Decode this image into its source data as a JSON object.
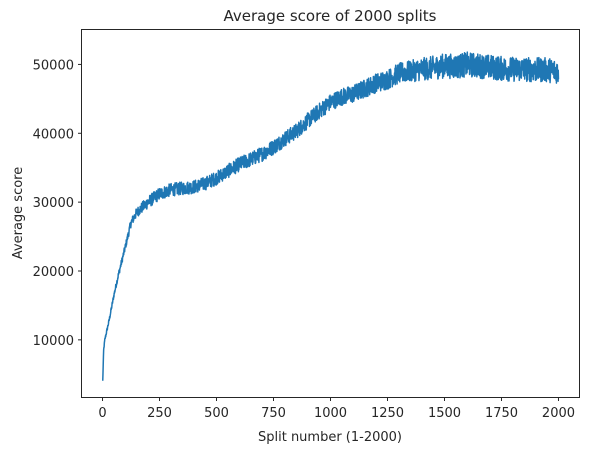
{
  "chart_data": {
    "type": "line",
    "title": "Average score of 2000 splits",
    "xlabel": "Split number (1-2000)",
    "ylabel": "Average score",
    "xlim": [
      -90,
      2090
    ],
    "ylim": [
      1700,
      55000
    ],
    "xticks": [
      0,
      250,
      500,
      750,
      1000,
      1250,
      1500,
      1750,
      2000
    ],
    "xtick_labels": [
      "0",
      "250",
      "500",
      "750",
      "1000",
      "1250",
      "1500",
      "1750",
      "2000"
    ],
    "yticks": [
      10000,
      20000,
      30000,
      40000,
      50000
    ],
    "ytick_labels": [
      "10000",
      "20000",
      "30000",
      "40000",
      "50000"
    ],
    "grid": false,
    "legend": "none",
    "colors": {
      "line": "#1f77b4",
      "axes": "#262626"
    },
    "series": [
      {
        "trend_x": [
          1,
          5,
          10,
          20,
          30,
          50,
          70,
          100,
          125,
          150,
          200,
          250,
          300,
          350,
          400,
          450,
          500,
          550,
          600,
          650,
          700,
          750,
          800,
          850,
          900,
          950,
          1000,
          1050,
          1100,
          1150,
          1200,
          1250,
          1300,
          1350,
          1400,
          1450,
          1500,
          1550,
          1600,
          1650,
          1700,
          1750,
          1800,
          1850,
          1900,
          1950,
          2000
        ],
        "trend_y": [
          4000,
          8500,
          10000,
          11500,
          13000,
          16500,
          19500,
          23500,
          27000,
          28500,
          30000,
          31200,
          31800,
          32000,
          32200,
          32700,
          33500,
          34500,
          35500,
          36200,
          37000,
          38000,
          39200,
          40300,
          41800,
          43200,
          44500,
          45300,
          45700,
          46500,
          47300,
          47800,
          48700,
          49000,
          49300,
          49500,
          49800,
          49700,
          50000,
          49800,
          49600,
          49400,
          49300,
          49300,
          49200,
          49200,
          49000
        ],
        "noise_x": [
          0,
          100,
          200,
          500,
          1000,
          1300,
          1500,
          2000
        ],
        "noise_amplitude": [
          200,
          500,
          900,
          1000,
          1200,
          1500,
          1800,
          1800
        ]
      }
    ]
  }
}
